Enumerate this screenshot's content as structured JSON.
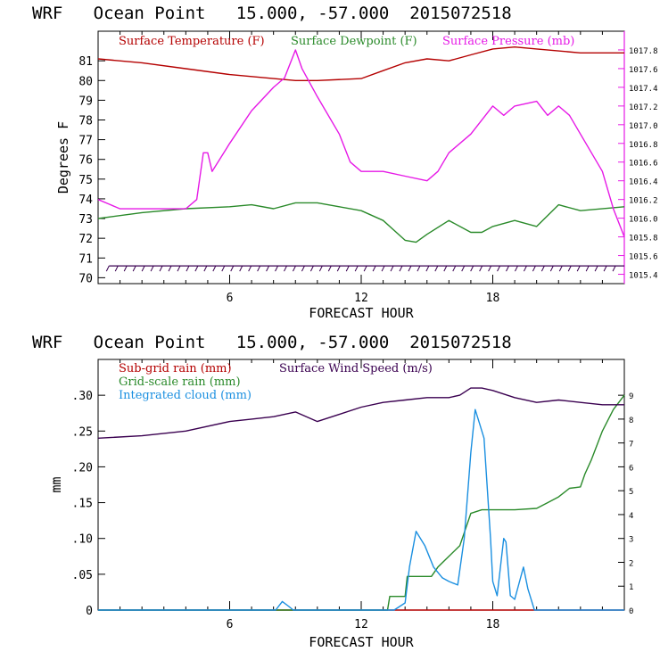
{
  "chart_data": [
    {
      "type": "line",
      "title": "WRF   Ocean Point   15.000, -57.000  2015072518",
      "xlabel": "FORECAST HOUR",
      "ylabel": "Degrees F",
      "xlim": [
        0,
        24
      ],
      "ylim": [
        69.7,
        82.5
      ],
      "y2lim": [
        1015.3,
        1018.0
      ],
      "xticks": [
        6,
        12,
        18
      ],
      "xtick_labels": [
        "6",
        "12",
        "18"
      ],
      "yticks": [
        70,
        71,
        72,
        73,
        74,
        75,
        76,
        77,
        78,
        79,
        80,
        81
      ],
      "ytick_labels": [
        "70",
        "71",
        "72",
        "73",
        "74",
        "75",
        "76",
        "77",
        "78",
        "79",
        "80",
        "81"
      ],
      "y2ticks": [
        1015.4,
        1015.6,
        1015.8,
        1016.0,
        1016.2,
        1016.4,
        1016.6,
        1016.8,
        1017.0,
        1017.2,
        1017.4,
        1017.6,
        1017.8
      ],
      "y2tick_labels": [
        "1015.4",
        "1015.6",
        "1015.8",
        "1016.0",
        "1016.2",
        "1016.4",
        "1016.6",
        "1016.8",
        "1017.0",
        "1017.2",
        "1017.4",
        "1017.6",
        "1017.8"
      ],
      "series": [
        {
          "name": "Surface Temperature (F)",
          "color": "#b40000",
          "axis": "left",
          "x": [
            0,
            2,
            4,
            6,
            8,
            9,
            10,
            12,
            13,
            14,
            15,
            16,
            17,
            18,
            19,
            20,
            22,
            24
          ],
          "y": [
            81.1,
            80.9,
            80.6,
            80.3,
            80.1,
            80.0,
            80.0,
            80.1,
            80.5,
            80.9,
            81.1,
            81.0,
            81.3,
            81.6,
            81.7,
            81.6,
            81.4,
            81.4
          ]
        },
        {
          "name": "Surface Dewpoint (F)",
          "color": "#2a8a2a",
          "axis": "left",
          "x": [
            0,
            2,
            4,
            6,
            7,
            8,
            9,
            10,
            11,
            12,
            13,
            14,
            14.5,
            15,
            16,
            17,
            17.5,
            18,
            19,
            20,
            21,
            22,
            24
          ],
          "y": [
            73.0,
            73.3,
            73.5,
            73.6,
            73.7,
            73.5,
            73.8,
            73.8,
            73.6,
            73.4,
            72.9,
            71.9,
            71.8,
            72.2,
            72.9,
            72.3,
            72.3,
            72.6,
            72.9,
            72.6,
            73.7,
            73.4,
            73.6
          ]
        },
        {
          "name": "Surface Pressure (mb)",
          "color": "#e619e6",
          "axis": "right",
          "x": [
            0,
            0.5,
            1,
            2,
            3,
            3.5,
            4,
            4.5,
            4.8,
            5,
            5.2,
            6,
            7,
            8,
            8.5,
            9,
            9.3,
            10,
            11,
            11.5,
            12,
            13,
            14,
            15,
            15.5,
            16,
            17,
            18,
            18.5,
            19,
            20,
            20.5,
            21,
            21.5,
            22,
            23,
            23.5,
            24
          ],
          "y": [
            1016.2,
            1016.15,
            1016.1,
            1016.1,
            1016.1,
            1016.1,
            1016.1,
            1016.2,
            1016.7,
            1016.7,
            1016.5,
            1016.8,
            1017.15,
            1017.4,
            1017.5,
            1017.8,
            1017.6,
            1017.3,
            1016.9,
            1016.6,
            1016.5,
            1016.5,
            1016.45,
            1016.4,
            1016.5,
            1016.7,
            1016.9,
            1017.2,
            1017.1,
            1017.2,
            1017.25,
            1017.1,
            1017.2,
            1017.1,
            1016.9,
            1016.5,
            1016.1,
            1015.8
          ]
        }
      ],
      "wind_barbs": {
        "y": 70.6,
        "count": 58,
        "color": "#3a0050"
      }
    },
    {
      "type": "line",
      "title": "WRF   Ocean Point   15.000, -57.000  2015072518",
      "xlabel": "FORECAST HOUR",
      "ylabel": "mm",
      "xlim": [
        0,
        24
      ],
      "ylim": [
        0,
        0.35
      ],
      "y2lim": [
        0,
        10.5
      ],
      "xticks": [
        6,
        12,
        18
      ],
      "xtick_labels": [
        "6",
        "12",
        "18"
      ],
      "yticks": [
        0,
        0.05,
        0.1,
        0.15,
        0.2,
        0.25,
        0.3
      ],
      "ytick_labels": [
        "0",
        ".05",
        ".10",
        ".15",
        ".20",
        ".25",
        ".30"
      ],
      "y2ticks": [
        0,
        1,
        2,
        3,
        4,
        5,
        6,
        7,
        8,
        9
      ],
      "y2tick_labels": [
        "0",
        "1",
        "2",
        "3",
        "4",
        "5",
        "6",
        "7",
        "8",
        "9"
      ],
      "series": [
        {
          "name": "Sub-grid rain (mm)",
          "color": "#b40000",
          "axis": "left",
          "x": [
            0,
            24
          ],
          "y": [
            0,
            0
          ]
        },
        {
          "name": "Grid-scale rain (mm)",
          "color": "#2a8a2a",
          "axis": "left",
          "x": [
            0,
            13.2,
            13.3,
            14.0,
            14.1,
            15.2,
            15.5,
            16.0,
            16.5,
            17.0,
            17.5,
            18,
            19.0,
            20.0,
            20.5,
            21.0,
            21.5,
            22.0,
            22.2,
            22.5,
            23.0,
            23.5,
            24
          ],
          "y": [
            0,
            0,
            0.019,
            0.019,
            0.047,
            0.047,
            0.06,
            0.075,
            0.09,
            0.135,
            0.14,
            0.14,
            0.14,
            0.142,
            0.15,
            0.158,
            0.17,
            0.172,
            0.19,
            0.21,
            0.25,
            0.28,
            0.3
          ]
        },
        {
          "name": "Integrated cloud (mm)",
          "color": "#1a8fe0",
          "axis": "left",
          "x": [
            0,
            8.1,
            8.4,
            8.7,
            8.9,
            9.1,
            13.5,
            14.0,
            14.2,
            14.5,
            14.9,
            15.3,
            15.7,
            16.0,
            16.4,
            16.7,
            17.0,
            17.2,
            17.4,
            17.6,
            17.9,
            18.0,
            18.2,
            18.5,
            18.6,
            18.8,
            19.0,
            19.4,
            19.6,
            19.9,
            20.0,
            24
          ],
          "y": [
            0,
            0,
            0.012,
            0.005,
            0,
            0,
            0,
            0.01,
            0.06,
            0.11,
            0.09,
            0.06,
            0.045,
            0.04,
            0.035,
            0.1,
            0.22,
            0.28,
            0.26,
            0.24,
            0.1,
            0.04,
            0.02,
            0.1,
            0.095,
            0.02,
            0.015,
            0.06,
            0.03,
            0.0,
            0,
            0
          ]
        },
        {
          "name": "Surface Wind Speed (m/s)",
          "color": "#3a0050",
          "axis": "right",
          "x": [
            0,
            2,
            4,
            6,
            7,
            8,
            9,
            10,
            11,
            12,
            13,
            14,
            15,
            16,
            16.5,
            17,
            17.5,
            18,
            19,
            20,
            21,
            22,
            23,
            24
          ],
          "y": [
            7.2,
            7.3,
            7.5,
            7.9,
            8.0,
            8.1,
            8.3,
            7.9,
            8.2,
            8.5,
            8.7,
            8.8,
            8.9,
            8.9,
            9.0,
            9.3,
            9.3,
            9.2,
            8.9,
            8.7,
            8.8,
            8.7,
            8.6,
            8.6
          ]
        }
      ]
    }
  ]
}
